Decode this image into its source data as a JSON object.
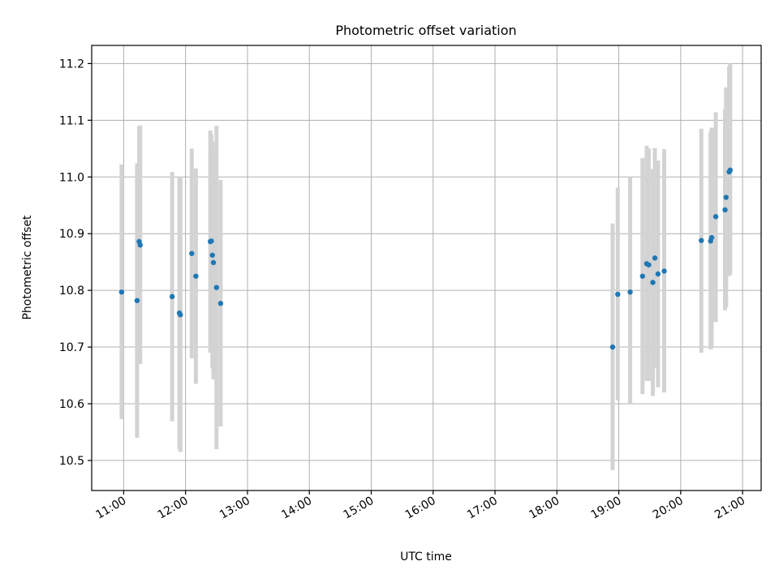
{
  "chart_data": {
    "type": "scatter",
    "title": "Photometric offset variation",
    "xlabel": "UTC time",
    "ylabel": "Photometric offset",
    "xlim": [
      "10:29",
      "21:18"
    ],
    "ylim": [
      10.447,
      11.232
    ],
    "x_ticks": [
      "11:00",
      "12:00",
      "13:00",
      "14:00",
      "15:00",
      "16:00",
      "17:00",
      "18:00",
      "19:00",
      "20:00",
      "21:00"
    ],
    "y_ticks": [
      10.5,
      10.6,
      10.7,
      10.8,
      10.9,
      11.0,
      11.1,
      11.2
    ],
    "grid": true,
    "colors": {
      "point": "#1f77b4",
      "errorbar": "#d3d3d3",
      "grid": "#b0b0b0"
    },
    "points": [
      {
        "t": "10:58",
        "y": 10.797,
        "lo": 10.573,
        "hi": 11.022
      },
      {
        "t": "11:13",
        "y": 10.782,
        "lo": 10.54,
        "hi": 11.024
      },
      {
        "t": "11:15",
        "y": 10.886,
        "lo": 10.683,
        "hi": 11.089
      },
      {
        "t": "11:16",
        "y": 10.88,
        "lo": 10.67,
        "hi": 11.091
      },
      {
        "t": "11:47",
        "y": 10.789,
        "lo": 10.569,
        "hi": 11.009
      },
      {
        "t": "11:54",
        "y": 10.76,
        "lo": 10.52,
        "hi": 11.0
      },
      {
        "t": "11:55",
        "y": 10.757,
        "lo": 10.515,
        "hi": 11.0
      },
      {
        "t": "12:06",
        "y": 10.865,
        "lo": 10.68,
        "hi": 11.05
      },
      {
        "t": "12:10",
        "y": 10.825,
        "lo": 10.635,
        "hi": 11.015
      },
      {
        "t": "12:24",
        "y": 10.886,
        "lo": 10.69,
        "hi": 11.082
      },
      {
        "t": "12:25",
        "y": 10.887,
        "lo": 10.7,
        "hi": 11.075
      },
      {
        "t": "12:26",
        "y": 10.862,
        "lo": 10.662,
        "hi": 11.062
      },
      {
        "t": "12:27",
        "y": 10.849,
        "lo": 10.643,
        "hi": 11.055
      },
      {
        "t": "12:30",
        "y": 10.805,
        "lo": 10.52,
        "hi": 11.09
      },
      {
        "t": "12:34",
        "y": 10.777,
        "lo": 10.56,
        "hi": 10.995
      },
      {
        "t": "18:54",
        "y": 10.7,
        "lo": 10.483,
        "hi": 10.918
      },
      {
        "t": "18:59",
        "y": 10.793,
        "lo": 10.606,
        "hi": 10.981
      },
      {
        "t": "19:11",
        "y": 10.797,
        "lo": 10.6,
        "hi": 11.0
      },
      {
        "t": "19:23",
        "y": 10.825,
        "lo": 10.617,
        "hi": 11.033
      },
      {
        "t": "19:27",
        "y": 10.847,
        "lo": 10.64,
        "hi": 11.055
      },
      {
        "t": "19:29",
        "y": 10.845,
        "lo": 10.64,
        "hi": 11.05
      },
      {
        "t": "19:33",
        "y": 10.814,
        "lo": 10.614,
        "hi": 11.014
      },
      {
        "t": "19:35",
        "y": 10.857,
        "lo": 10.663,
        "hi": 11.051
      },
      {
        "t": "19:38",
        "y": 10.829,
        "lo": 10.629,
        "hi": 11.029
      },
      {
        "t": "19:44",
        "y": 10.834,
        "lo": 10.62,
        "hi": 11.049
      },
      {
        "t": "20:20",
        "y": 10.888,
        "lo": 10.69,
        "hi": 11.085
      },
      {
        "t": "20:29",
        "y": 10.887,
        "lo": 10.696,
        "hi": 11.08
      },
      {
        "t": "20:30",
        "y": 10.893,
        "lo": 10.698,
        "hi": 11.087
      },
      {
        "t": "20:34",
        "y": 10.93,
        "lo": 10.744,
        "hi": 11.114
      },
      {
        "t": "20:43",
        "y": 10.942,
        "lo": 10.765,
        "hi": 11.12
      },
      {
        "t": "20:44",
        "y": 10.964,
        "lo": 10.77,
        "hi": 11.158
      },
      {
        "t": "20:47",
        "y": 11.009,
        "lo": 10.825,
        "hi": 11.195
      },
      {
        "t": "20:48",
        "y": 11.012,
        "lo": 10.828,
        "hi": 11.2
      }
    ]
  }
}
